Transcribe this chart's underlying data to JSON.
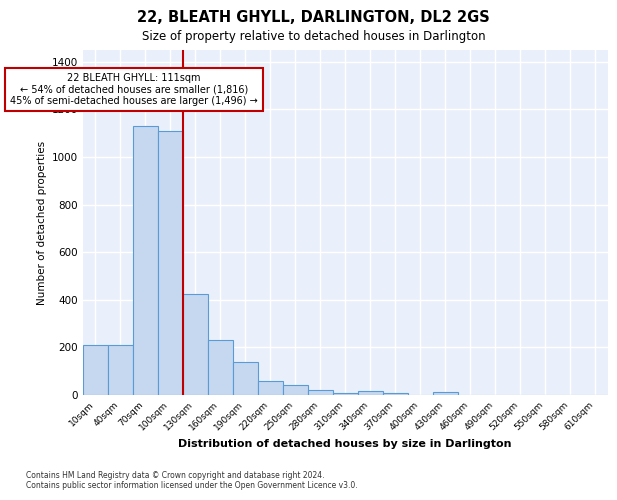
{
  "title": "22, BLEATH GHYLL, DARLINGTON, DL2 2GS",
  "subtitle": "Size of property relative to detached houses in Darlington",
  "xlabel": "Distribution of detached houses by size in Darlington",
  "ylabel": "Number of detached properties",
  "categories": [
    "10sqm",
    "40sqm",
    "70sqm",
    "100sqm",
    "130sqm",
    "160sqm",
    "190sqm",
    "220sqm",
    "250sqm",
    "280sqm",
    "310sqm",
    "340sqm",
    "370sqm",
    "400sqm",
    "430sqm",
    "460sqm",
    "490sqm",
    "520sqm",
    "550sqm",
    "580sqm",
    "610sqm"
  ],
  "values": [
    210,
    210,
    1130,
    1110,
    425,
    230,
    140,
    60,
    40,
    20,
    10,
    15,
    10,
    0,
    12,
    0,
    0,
    0,
    0,
    0,
    0
  ],
  "bar_color": "#c5d8f0",
  "bar_edge_color": "#5b9bd5",
  "vline_color": "#c00000",
  "annotation_text": "22 BLEATH GHYLL: 111sqm\n← 54% of detached houses are smaller (1,816)\n45% of semi-detached houses are larger (1,496) →",
  "annotation_box_color": "#ffffff",
  "annotation_box_edge": "#c00000",
  "ylim": [
    0,
    1450
  ],
  "yticks": [
    0,
    200,
    400,
    600,
    800,
    1000,
    1200,
    1400
  ],
  "background_color": "#eaf0fb",
  "grid_color": "#ffffff",
  "footer_line1": "Contains HM Land Registry data © Crown copyright and database right 2024.",
  "footer_line2": "Contains public sector information licensed under the Open Government Licence v3.0."
}
